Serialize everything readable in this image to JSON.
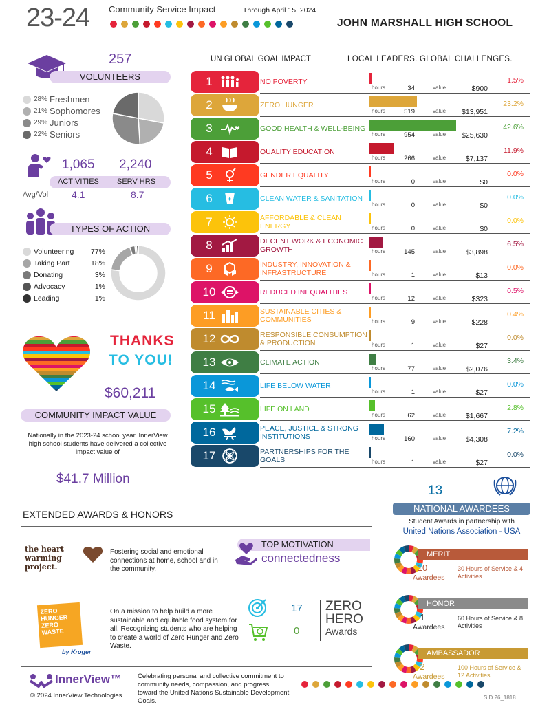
{
  "header": {
    "year": "23-24",
    "subtitle": "Community Service Impact",
    "through": "Through April 15, 2024",
    "school": "JOHN MARSHALL HIGH SCHOOL"
  },
  "palette": [
    "#e5243b",
    "#dda63a",
    "#4c9f38",
    "#c5192d",
    "#ff3a21",
    "#26bde2",
    "#fcc30b",
    "#a21942",
    "#fd6925",
    "#dd1367",
    "#fd9d24",
    "#bf8b2e",
    "#3f7e44",
    "#0a97d9",
    "#56c02b",
    "#00689d",
    "#19486a"
  ],
  "volunteers": {
    "count": "257",
    "label": "VOLUNTEERS",
    "legend": [
      {
        "pct": "28%",
        "name": "Freshmen",
        "color": "#d9d9d9",
        "value": 28
      },
      {
        "pct": "21%",
        "name": "Sophomores",
        "color": "#b0b0b0",
        "value": 21
      },
      {
        "pct": "29%",
        "name": "Juniors",
        "color": "#8a8a8a",
        "value": 29
      },
      {
        "pct": "22%",
        "name": "Seniors",
        "color": "#6a6a6a",
        "value": 22
      }
    ]
  },
  "activities": {
    "count": "1,065",
    "label": "ACTIVITIES",
    "avg": "4.1",
    "hrs": "2,240",
    "hrs_label": "SERV HRS",
    "hrs_avg": "8.7",
    "avg_label": "Avg/Vol"
  },
  "types": {
    "label": "TYPES OF ACTION",
    "items": [
      {
        "name": "Volunteering",
        "pct": "77%",
        "color": "#d9d9d9",
        "value": 77
      },
      {
        "name": "Taking Part",
        "pct": "18%",
        "color": "#a6a6a6",
        "value": 18
      },
      {
        "name": "Donating",
        "pct": "3%",
        "color": "#7a7a7a",
        "value": 3
      },
      {
        "name": "Advocacy",
        "pct": "1%",
        "color": "#555555",
        "value": 1
      },
      {
        "name": "Leading",
        "pct": "1%",
        "color": "#333333",
        "value": 1
      }
    ]
  },
  "thanks": {
    "line1": "THANKS",
    "line2": "TO YOU!",
    "value": "$60,211",
    "label": "COMMUNITY IMPACT VALUE",
    "national_text": "Nationally in the 2023-24 school year, InnerView high school students have delivered a collective impact value of",
    "national_value": "$41.7 Million"
  },
  "goals_header": {
    "left": "UN GLOBAL GOAL IMPACT",
    "right": "LOCAL LEADERS.  GLOBAL CHALLENGES.",
    "hours_label": "hours",
    "value_label": "value"
  },
  "goals": [
    {
      "num": "1",
      "name": "NO POVERTY",
      "hours": "34",
      "value": "$900",
      "pct": "1.5%",
      "frac": 0.015,
      "color": "#e5243b",
      "icon": "people-icon"
    },
    {
      "num": "2",
      "name": "ZERO HUNGER",
      "hours": "519",
      "value": "$13,951",
      "pct": "23.2%",
      "frac": 0.232,
      "color": "#dda63a",
      "icon": "bowl-icon"
    },
    {
      "num": "3",
      "name": "GOOD HEALTH & WELL-BEING",
      "hours": "954",
      "value": "$25,630",
      "pct": "42.6%",
      "frac": 0.426,
      "color": "#4c9f38",
      "icon": "heartbeat-icon"
    },
    {
      "num": "4",
      "name": "QUALITY EDUCATION",
      "hours": "266",
      "value": "$7,137",
      "pct": "11.9%",
      "frac": 0.119,
      "color": "#c5192d",
      "icon": "book-icon"
    },
    {
      "num": "5",
      "name": "GENDER EQUALITY",
      "hours": "0",
      "value": "$0",
      "pct": "0.0%",
      "frac": 0,
      "color": "#ff3a21",
      "icon": "gender-icon"
    },
    {
      "num": "6",
      "name": "CLEAN WATER & SANITATION",
      "hours": "0",
      "value": "$0",
      "pct": "0.0%",
      "frac": 0,
      "color": "#26bde2",
      "icon": "water-drop-icon"
    },
    {
      "num": "7",
      "name": "AFFORDABLE & CLEAN ENERGY",
      "hours": "0",
      "value": "$0",
      "pct": "0.0%",
      "frac": 0,
      "color": "#fcc30b",
      "icon": "sun-icon"
    },
    {
      "num": "8",
      "name": "DECENT WORK & ECONOMIC GROWTH",
      "hours": "145",
      "value": "$3,898",
      "pct": "6.5%",
      "frac": 0.065,
      "color": "#a21942",
      "icon": "growth-chart-icon"
    },
    {
      "num": "9",
      "name": "INDUSTRY, INNOVATION & INFRASTRUCTURE",
      "hours": "1",
      "value": "$13",
      "pct": "0.0%",
      "frac": 0,
      "color": "#fd6925",
      "icon": "cubes-icon"
    },
    {
      "num": "10",
      "name": "REDUCED INEQUALITIES",
      "hours": "12",
      "value": "$323",
      "pct": "0.5%",
      "frac": 0.005,
      "color": "#dd1367",
      "icon": "equality-icon"
    },
    {
      "num": "11",
      "name": "SUSTAINABLE CITIES & COMMUNITIES",
      "hours": "9",
      "value": "$228",
      "pct": "0.4%",
      "frac": 0.004,
      "color": "#fd9d24",
      "icon": "city-icon"
    },
    {
      "num": "12",
      "name": "RESPONSIBLE CONSUMPTION & PRODUCTION",
      "hours": "1",
      "value": "$27",
      "pct": "0.0%",
      "frac": 0,
      "color": "#bf8b2e",
      "icon": "infinity-icon"
    },
    {
      "num": "13",
      "name": "CLIMATE ACTION",
      "hours": "77",
      "value": "$2,076",
      "pct": "3.4%",
      "frac": 0.034,
      "color": "#3f7e44",
      "icon": "eye-globe-icon"
    },
    {
      "num": "14",
      "name": "LIFE BELOW WATER",
      "hours": "1",
      "value": "$27",
      "pct": "0.0%",
      "frac": 0,
      "color": "#0a97d9",
      "icon": "fish-icon"
    },
    {
      "num": "15",
      "name": "LIFE ON LAND",
      "hours": "62",
      "value": "$1,667",
      "pct": "2.8%",
      "frac": 0.028,
      "color": "#56c02b",
      "icon": "tree-icon"
    },
    {
      "num": "16",
      "name": "PEACE, JUSTICE & STRONG INSTITUTIONS",
      "hours": "160",
      "value": "$4,308",
      "pct": "7.2%",
      "frac": 0.072,
      "color": "#00689d",
      "icon": "dove-icon"
    },
    {
      "num": "17",
      "name": "PARTNERSHIPS FOR THE GOALS",
      "hours": "1",
      "value": "$27",
      "pct": "0.0%",
      "frac": 0,
      "color": "#19486a",
      "icon": "flower-rings-icon"
    }
  ],
  "extended": {
    "title": "EXTENDED AWARDS & HONORS",
    "heart_text": "Fostering social and emotional connections at home, school and in the community.",
    "heart_logo": "the heart warming project.",
    "top_motivation_label": "TOP MOTIVATION",
    "top_motivation": "connectedness",
    "zh_text": "On a mission to help build a more sustainable and equitable food system for all. Recognizing students who are helping to create a world of Zero Hunger and Zero Waste.",
    "zh_logo": "ZERO HUNGER ZERO WASTE",
    "zh_logo_by": "by Kroger",
    "zh_count1": "17",
    "zh_count2": "0",
    "zh_award_line1": "ZERO",
    "zh_award_line2": "HERO",
    "zh_award_line3": "Awards"
  },
  "national": {
    "count": "13",
    "label": "NATIONAL AWARDEES",
    "partner_text": "Student Awards in partnership with",
    "partner": "United Nations Association - USA",
    "awards": [
      {
        "name": "MERIT",
        "count": "10",
        "unit": "Awardees",
        "desc": "30 Hours of Service & 4 Activities",
        "color": "#b85a3a",
        "textcolor": "#b85a3a"
      },
      {
        "name": "HONOR",
        "count": "1",
        "unit": "Awardees",
        "desc": "60 Hours of Service & 8 Activities",
        "color": "#8a8a8a",
        "textcolor": "#333333"
      },
      {
        "name": "AMBASSADOR",
        "count": "2",
        "unit": "Awardees",
        "desc": "100 Hours of Service & 12 Activities",
        "color": "#c89a34",
        "textcolor": "#c89a34"
      }
    ]
  },
  "footer": {
    "brand": "InnerView™",
    "copyright": "© 2024 InnerView Technologies",
    "text": "Celebrating personal and collective commitment to community needs, compassion, and progress toward the United Nations Sustainable Development Goals.",
    "sid": "SID 26_1818"
  }
}
